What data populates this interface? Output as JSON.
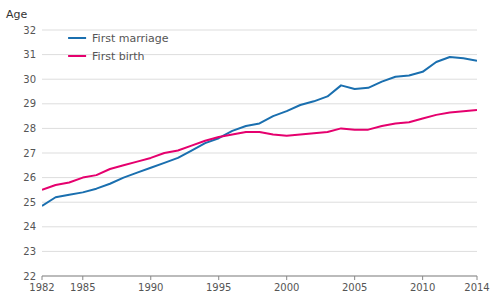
{
  "chart_data": {
    "type": "line",
    "ylabel": "Age",
    "x": [
      1982,
      1983,
      1984,
      1985,
      1986,
      1987,
      1988,
      1989,
      1990,
      1991,
      1992,
      1993,
      1994,
      1995,
      1996,
      1997,
      1998,
      1999,
      2000,
      2001,
      2002,
      2003,
      2004,
      2005,
      2006,
      2007,
      2008,
      2009,
      2010,
      2011,
      2012,
      2013,
      2014
    ],
    "series": [
      {
        "name": "First marriage",
        "color": "#1a6faf",
        "values": [
          24.85,
          25.2,
          25.3,
          25.4,
          25.55,
          25.75,
          26.0,
          26.2,
          26.4,
          26.6,
          26.8,
          27.1,
          27.4,
          27.6,
          27.9,
          28.1,
          28.2,
          28.5,
          28.7,
          28.95,
          29.1,
          29.3,
          29.75,
          29.6,
          29.65,
          29.9,
          30.1,
          30.15,
          30.3,
          30.7,
          30.9,
          30.85,
          30.75
        ]
      },
      {
        "name": "First birth",
        "color": "#e5006e",
        "values": [
          25.5,
          25.7,
          25.8,
          26.0,
          26.1,
          26.35,
          26.5,
          26.65,
          26.8,
          27.0,
          27.1,
          27.3,
          27.5,
          27.65,
          27.75,
          27.85,
          27.85,
          27.75,
          27.7,
          27.75,
          27.8,
          27.85,
          28.0,
          27.95,
          27.95,
          28.1,
          28.2,
          28.25,
          28.4,
          28.55,
          28.65,
          28.7,
          28.75
        ]
      }
    ],
    "xlim": [
      1982,
      2014
    ],
    "xticks": [
      1982,
      1985,
      1990,
      1995,
      2000,
      2005,
      2010,
      2014
    ],
    "ylim": [
      22,
      32
    ],
    "yticks": [
      22,
      23,
      24,
      25,
      26,
      27,
      28,
      29,
      30,
      31,
      32
    ],
    "grid": true,
    "legend": "upper left"
  }
}
